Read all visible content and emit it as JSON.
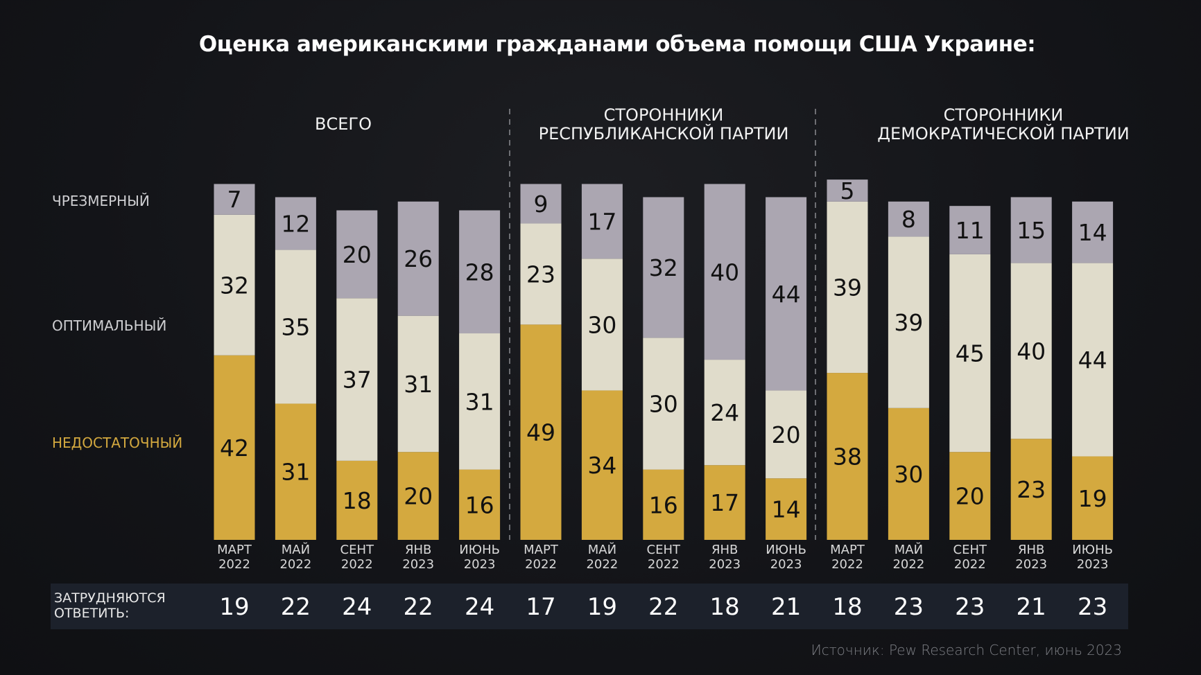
{
  "chart_data": {
    "type": "bar",
    "stacked": true,
    "title": "Оценка американскими гражданами объема помощи США Украине:",
    "groups": [
      {
        "label": "ВСЕГО"
      },
      {
        "label": "СТОРОННИКИ\nРЕСПУБЛИКАНСКОЙ ПАРТИИ"
      },
      {
        "label": "СТОРОННИКИ\nДЕМОКРАТИЧЕСКОЙ ПАРТИИ"
      }
    ],
    "categories": [
      [
        "МАРТ",
        "2022"
      ],
      [
        "МАЙ",
        "2022"
      ],
      [
        "СЕНТ",
        "2022"
      ],
      [
        "ЯНВ",
        "2023"
      ],
      [
        "ИЮНЬ",
        "2023"
      ],
      [
        "МАРТ",
        "2022"
      ],
      [
        "МАЙ",
        "2022"
      ],
      [
        "СЕНТ",
        "2022"
      ],
      [
        "ЯНВ",
        "2023"
      ],
      [
        "ИЮНЬ",
        "2023"
      ],
      [
        "МАРТ",
        "2022"
      ],
      [
        "МАЙ",
        "2022"
      ],
      [
        "СЕНТ",
        "2022"
      ],
      [
        "ЯНВ",
        "2023"
      ],
      [
        "ИЮНЬ",
        "2023"
      ]
    ],
    "series": [
      {
        "name": "НЕДОСТАТОЧНЫЙ",
        "color": "#d4a93f",
        "values": [
          42,
          31,
          18,
          20,
          16,
          49,
          34,
          16,
          17,
          14,
          38,
          30,
          20,
          23,
          19
        ]
      },
      {
        "name": "ОПТИМАЛЬНЫЙ",
        "color": "#e0dccb",
        "values": [
          32,
          35,
          37,
          31,
          31,
          23,
          30,
          30,
          24,
          20,
          39,
          39,
          45,
          40,
          44
        ]
      },
      {
        "name": "ЧРЕЗМЕРНЫЙ",
        "color": "#aba6b1",
        "values": [
          7,
          12,
          20,
          26,
          28,
          9,
          17,
          32,
          40,
          44,
          5,
          8,
          11,
          15,
          14
        ]
      }
    ],
    "dont_know": {
      "label": "ЗАТРУДНЯЮТСЯ\nОТВЕТИТЬ:",
      "values": [
        19,
        22,
        24,
        22,
        24,
        17,
        19,
        22,
        18,
        21,
        18,
        23,
        23,
        21,
        23
      ]
    },
    "source": "Источник: Pew Research Center, июнь 2023"
  }
}
